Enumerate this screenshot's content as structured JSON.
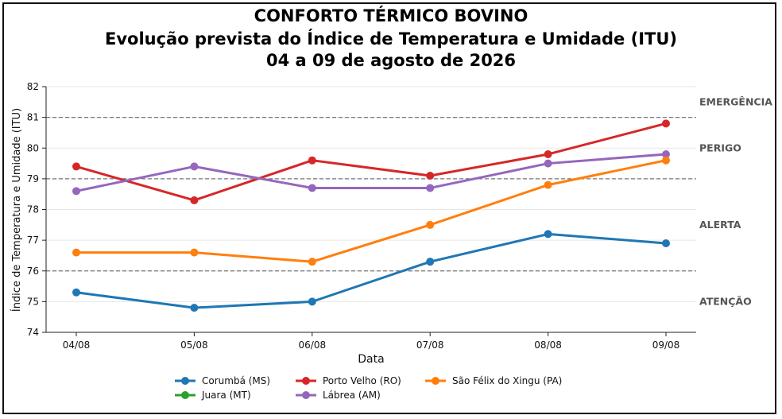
{
  "chart_data": {
    "type": "line",
    "title": "CONFORTO TÉRMICO BOVINO",
    "subtitle": "Evolução prevista do Índice de Temperatura e Umidade (ITU)",
    "subtitle2": "04 a 09 de agosto de 2026",
    "xlabel": "Data",
    "ylabel": "Índice de Temperatura e Umidade (ITU)",
    "categories": [
      "04/08",
      "05/08",
      "06/08",
      "07/08",
      "08/08",
      "09/08"
    ],
    "ylim": [
      74,
      82
    ],
    "yticks": [
      "74",
      "75",
      "76",
      "77",
      "78",
      "79",
      "80",
      "81",
      "82"
    ],
    "grid": "horizontal",
    "thresholds": [
      {
        "value": 76,
        "style": "dashed"
      },
      {
        "value": 79,
        "style": "dashed"
      },
      {
        "value": 81,
        "style": "dashed"
      }
    ],
    "zones": [
      {
        "label": "EMERGÊNCIA",
        "value": 81.5
      },
      {
        "label": "PERIGO",
        "value": 80
      },
      {
        "label": "ALERTA",
        "value": 77.5
      },
      {
        "label": "ATENÇÃO",
        "value": 75
      }
    ],
    "series": [
      {
        "name": "Corumbá (MS)",
        "color": "#1f77b4",
        "values": [
          75.3,
          74.8,
          75.0,
          76.3,
          77.2,
          76.9
        ]
      },
      {
        "name": "Juara (MT)",
        "color": "#2ca02c",
        "values": [
          null,
          null,
          null,
          null,
          null,
          null
        ]
      },
      {
        "name": "Porto Velho (RO)",
        "color": "#d62728",
        "values": [
          79.4,
          78.3,
          79.6,
          79.1,
          79.8,
          80.8
        ]
      },
      {
        "name": "Lábrea (AM)",
        "color": "#9467bd",
        "values": [
          78.6,
          79.4,
          78.7,
          78.7,
          79.5,
          79.8
        ]
      },
      {
        "name": "São Félix do Xingu (PA)",
        "color": "#ff7f0e",
        "values": [
          76.6,
          76.6,
          76.3,
          77.5,
          78.8,
          79.6
        ]
      }
    ],
    "legend_order": [
      0,
      2,
      4,
      1,
      3
    ],
    "legend_position": "bottom"
  }
}
